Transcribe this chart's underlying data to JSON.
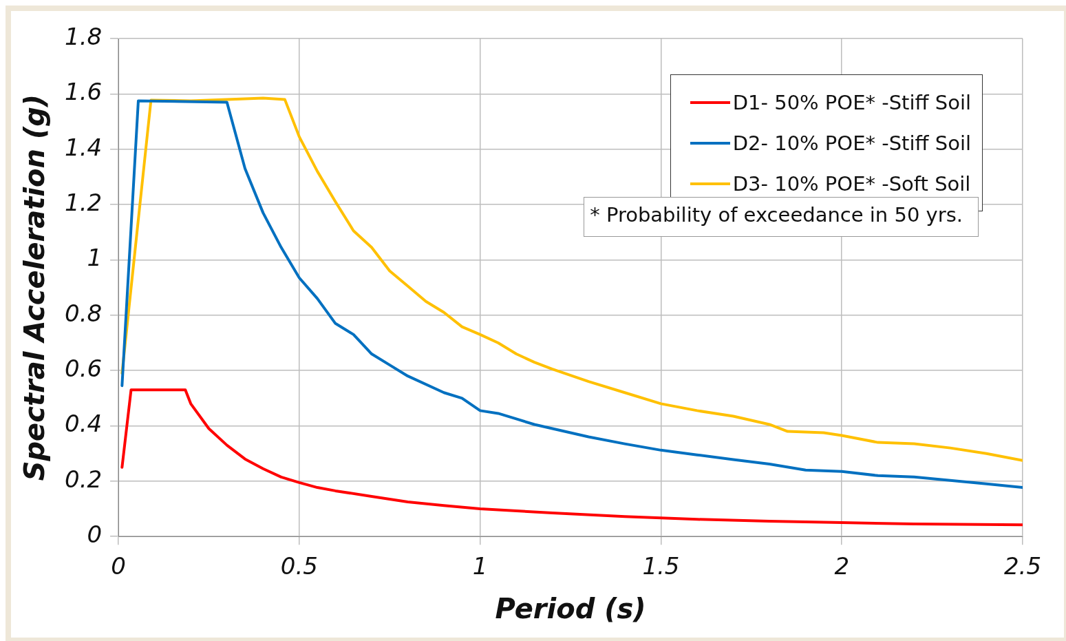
{
  "chart_data": {
    "type": "line",
    "xlabel": "Period (s)",
    "ylabel": "Spectral Acceleration (g)",
    "xlim": [
      0,
      2.5
    ],
    "xticks": [
      0,
      0.5,
      1,
      1.5,
      2,
      2.5
    ],
    "ylim": [
      0,
      1.8
    ],
    "yticks": [
      0,
      0.2,
      0.4,
      0.6,
      0.8,
      1,
      1.2,
      1.4,
      1.6,
      1.8
    ],
    "grid": true,
    "legend": "top right",
    "marker": "none",
    "line_style": "solid",
    "annotations": [
      "* Probability of exceedance in 50 yrs."
    ],
    "series": [
      {
        "name": "D1- 50% POE* -Stiff Soil",
        "color": "#ff0000",
        "x": [
          0.01,
          0.035,
          0.185,
          0.2,
          0.25,
          0.3,
          0.35,
          0.4,
          0.45,
          0.5,
          0.55,
          0.6,
          0.7,
          0.8,
          0.9,
          1.0,
          1.2,
          1.4,
          1.6,
          1.8,
          2.0,
          2.2,
          2.5
        ],
        "values": [
          0.25,
          0.53,
          0.53,
          0.48,
          0.39,
          0.33,
          0.28,
          0.245,
          0.215,
          0.195,
          0.177,
          0.165,
          0.145,
          0.125,
          0.112,
          0.1,
          0.085,
          0.072,
          0.062,
          0.055,
          0.05,
          0.045,
          0.042
        ]
      },
      {
        "name": "D2- 10% POE* -Stiff Soil",
        "color": "#0070c0",
        "x": [
          0.01,
          0.055,
          0.3,
          0.35,
          0.4,
          0.45,
          0.5,
          0.55,
          0.6,
          0.65,
          0.7,
          0.75,
          0.8,
          0.9,
          0.95,
          1.0,
          1.05,
          1.1,
          1.15,
          1.2,
          1.3,
          1.4,
          1.5,
          1.6,
          1.7,
          1.8,
          1.9,
          2.0,
          2.1,
          2.2,
          2.3,
          2.4,
          2.5
        ],
        "values": [
          0.545,
          1.575,
          1.57,
          1.33,
          1.17,
          1.045,
          0.935,
          0.86,
          0.77,
          0.73,
          0.66,
          0.62,
          0.58,
          0.52,
          0.5,
          0.455,
          0.445,
          0.425,
          0.405,
          0.39,
          0.36,
          0.335,
          0.312,
          0.295,
          0.278,
          0.262,
          0.24,
          0.235,
          0.22,
          0.215,
          0.203,
          0.19,
          0.177
        ]
      },
      {
        "name": "D3- 10% POE* -Soft Soil",
        "color": "#ffc000",
        "x": [
          0.01,
          0.09,
          0.2,
          0.4,
          0.46,
          0.5,
          0.55,
          0.6,
          0.65,
          0.7,
          0.75,
          0.8,
          0.85,
          0.9,
          0.95,
          1.0,
          1.05,
          1.1,
          1.15,
          1.2,
          1.3,
          1.4,
          1.5,
          1.6,
          1.7,
          1.8,
          1.85,
          1.95,
          2.0,
          2.1,
          2.2,
          2.3,
          2.4,
          2.5
        ],
        "values": [
          0.59,
          1.577,
          1.575,
          1.585,
          1.58,
          1.445,
          1.32,
          1.21,
          1.105,
          1.045,
          0.96,
          0.905,
          0.85,
          0.81,
          0.758,
          0.73,
          0.7,
          0.66,
          0.63,
          0.605,
          0.56,
          0.52,
          0.48,
          0.455,
          0.435,
          0.405,
          0.38,
          0.375,
          0.365,
          0.34,
          0.335,
          0.32,
          0.3,
          0.275
        ]
      }
    ]
  }
}
